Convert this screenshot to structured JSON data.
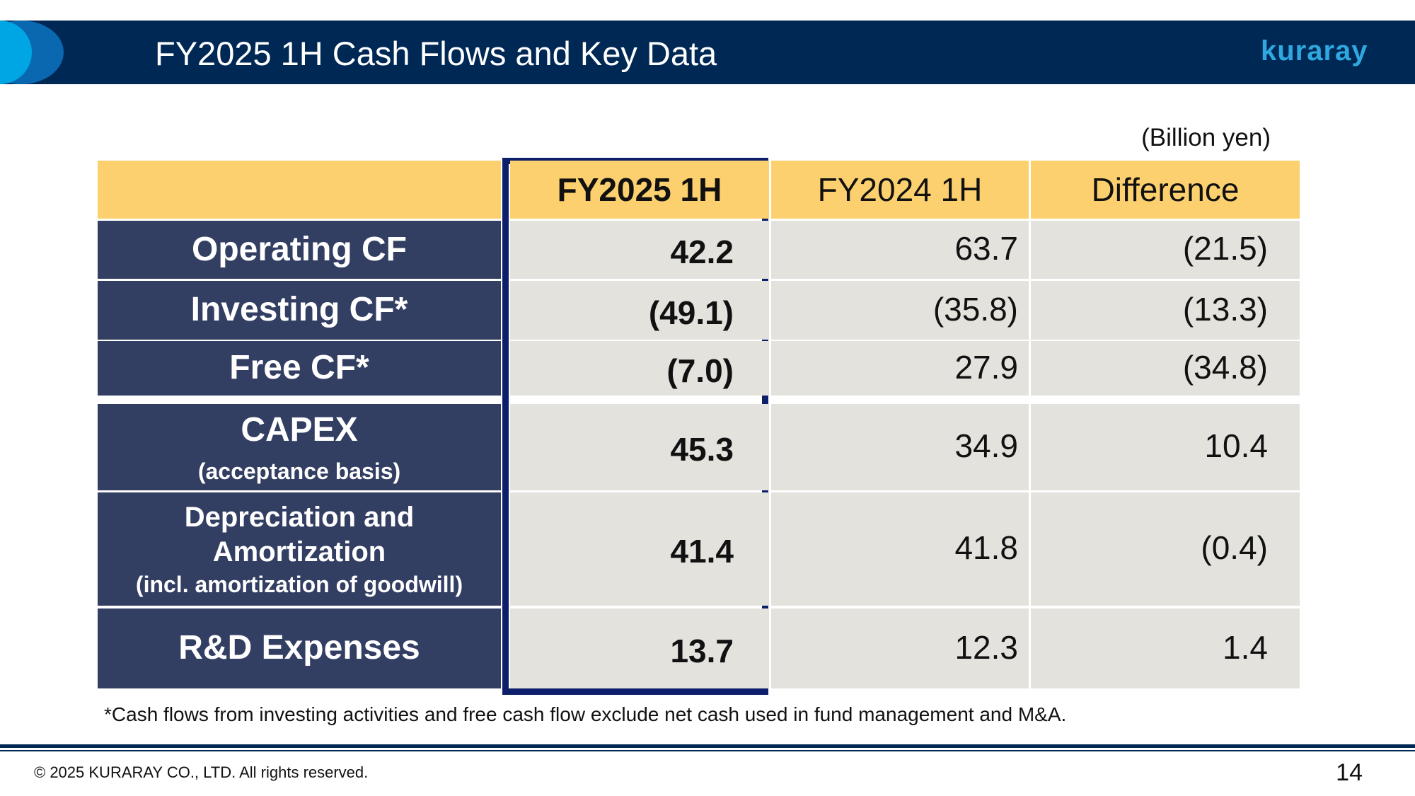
{
  "header": {
    "title": "FY2025 1H Cash Flows and Key Data",
    "logo": "kuraray"
  },
  "unit": "(Billion yen)",
  "table": {
    "columns": [
      "FY2025 1H",
      "FY2024 1H",
      "Difference"
    ],
    "rows": [
      {
        "label": "Operating CF",
        "values": [
          "42.2",
          "63.7",
          "(21.5)"
        ]
      },
      {
        "label": "Investing CF*",
        "values": [
          "(49.1)",
          "(35.8)",
          "(13.3)"
        ]
      },
      {
        "label": "Free CF*",
        "values": [
          "(7.0)",
          "27.9",
          "(34.8)"
        ]
      },
      {
        "label": "CAPEX",
        "sublabel": "(acceptance basis)",
        "values": [
          "45.3",
          "34.9",
          "10.4"
        ]
      },
      {
        "label": "Depreciation and Amortization",
        "sublabel": "(incl. amortization of goodwill)",
        "values": [
          "41.4",
          "41.8",
          "(0.4)"
        ]
      },
      {
        "label": "R&D Expenses",
        "values": [
          "13.7",
          "12.3",
          "1.4"
        ]
      }
    ]
  },
  "footnote": "*Cash flows from investing activities and free cash flow exclude net cash used in fund management and M&A.",
  "footer": {
    "copyright": "© 2025 KURARAY CO., LTD. All rights reserved.",
    "page": "14"
  }
}
